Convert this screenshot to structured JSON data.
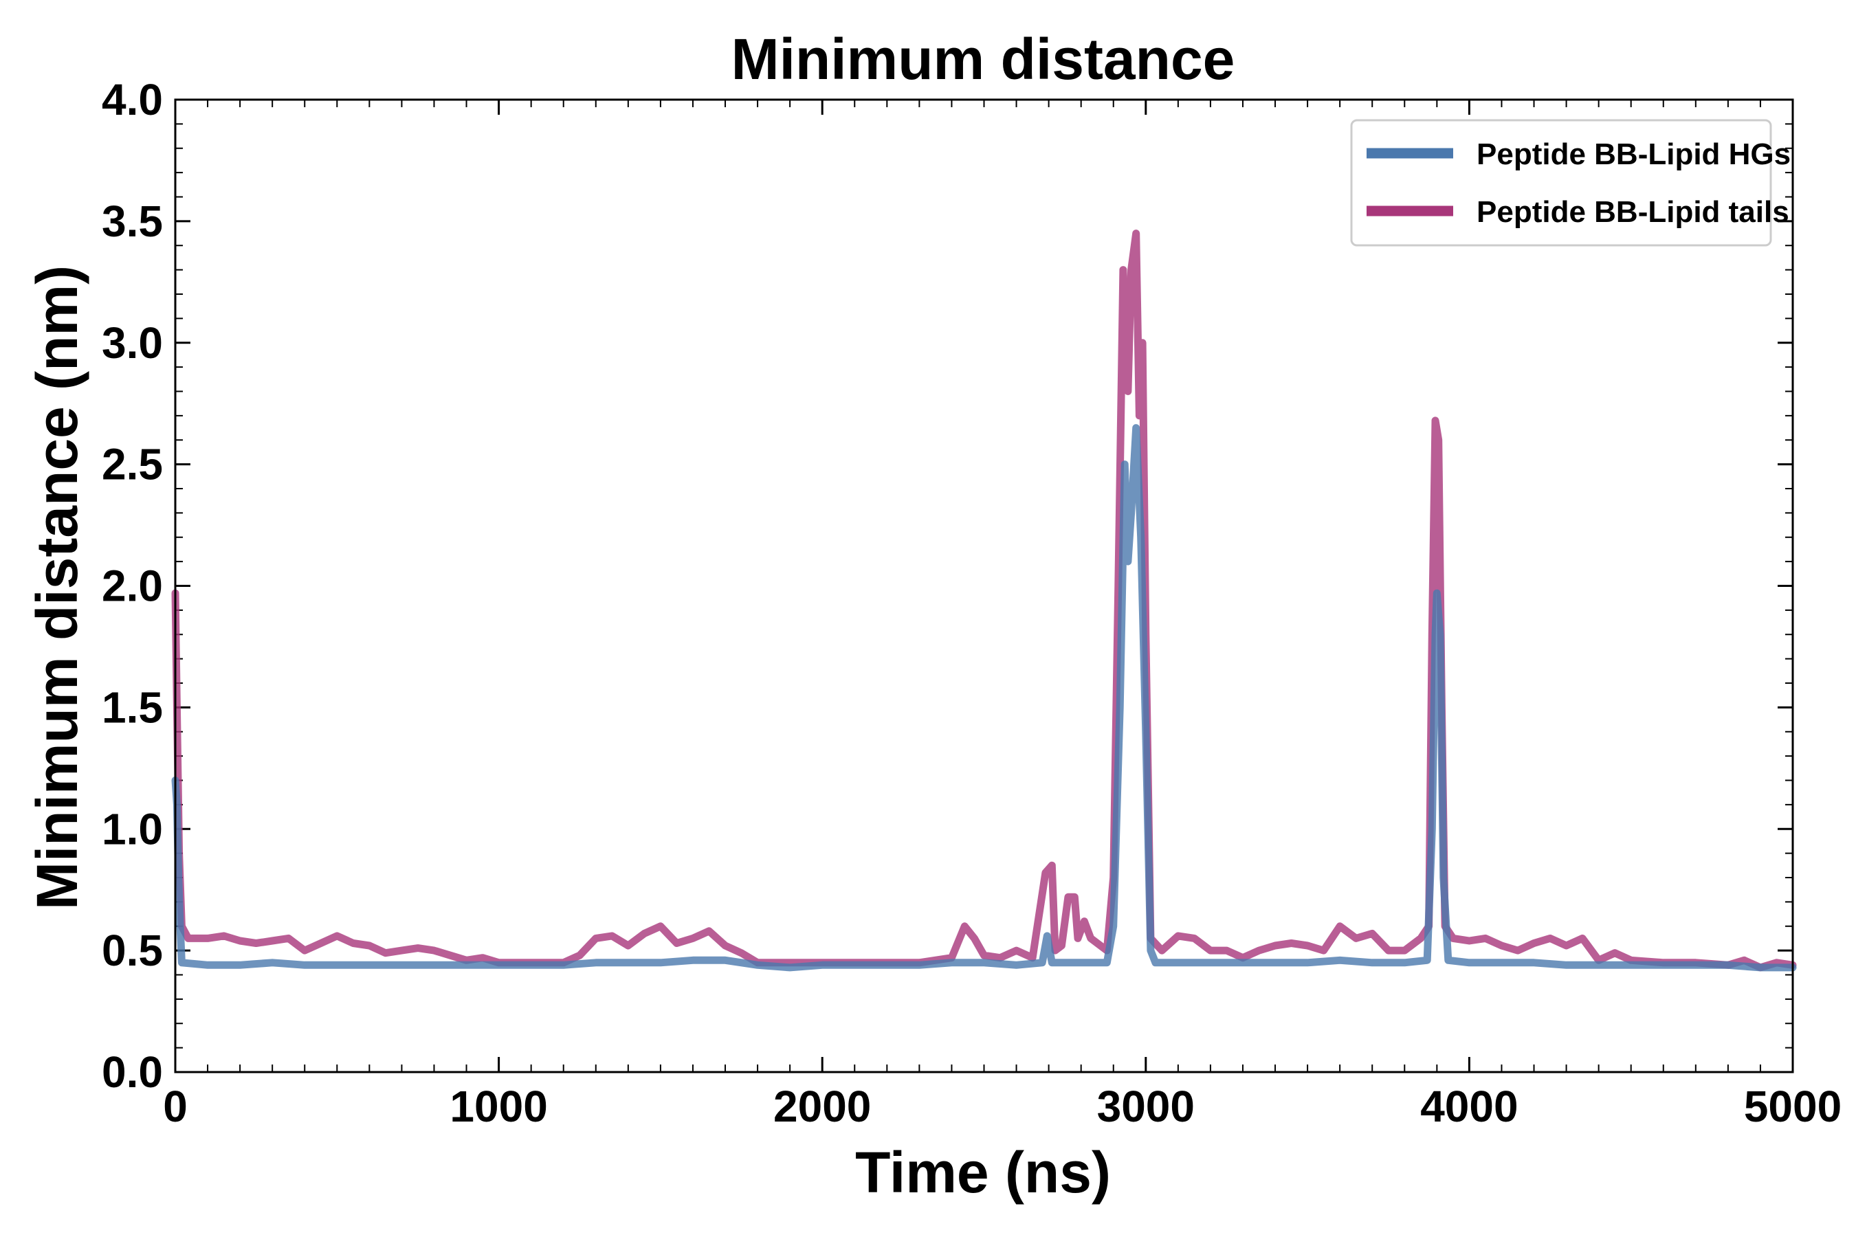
{
  "chart_data": {
    "type": "line",
    "title": "Minimum distance",
    "xlabel": "Time (ns)",
    "ylabel": "Minimum distance (nm)",
    "xlim": [
      0,
      5000
    ],
    "ylim": [
      0,
      4.0
    ],
    "x_ticks": [
      "0",
      "1000",
      "2000",
      "3000",
      "4000",
      "5000"
    ],
    "y_ticks": [
      "0.0",
      "0.5",
      "1.0",
      "1.5",
      "2.0",
      "2.5",
      "3.0",
      "3.5",
      "4.0"
    ],
    "legend_position": "top-right",
    "series": [
      {
        "name": "Peptide BB-Lipid HGs",
        "color": "#4a78ad",
        "points": [
          [
            0,
            1.2
          ],
          [
            5,
            1.1
          ],
          [
            10,
            0.8
          ],
          [
            15,
            0.6
          ],
          [
            20,
            0.45
          ],
          [
            100,
            0.44
          ],
          [
            200,
            0.44
          ],
          [
            300,
            0.45
          ],
          [
            400,
            0.44
          ],
          [
            500,
            0.44
          ],
          [
            600,
            0.44
          ],
          [
            700,
            0.44
          ],
          [
            800,
            0.44
          ],
          [
            900,
            0.44
          ],
          [
            1000,
            0.44
          ],
          [
            1100,
            0.44
          ],
          [
            1200,
            0.44
          ],
          [
            1300,
            0.45
          ],
          [
            1400,
            0.45
          ],
          [
            1500,
            0.45
          ],
          [
            1600,
            0.46
          ],
          [
            1700,
            0.46
          ],
          [
            1800,
            0.44
          ],
          [
            1900,
            0.43
          ],
          [
            2000,
            0.44
          ],
          [
            2100,
            0.44
          ],
          [
            2200,
            0.44
          ],
          [
            2300,
            0.44
          ],
          [
            2400,
            0.45
          ],
          [
            2500,
            0.45
          ],
          [
            2600,
            0.44
          ],
          [
            2680,
            0.45
          ],
          [
            2695,
            0.56
          ],
          [
            2710,
            0.45
          ],
          [
            2800,
            0.45
          ],
          [
            2880,
            0.45
          ],
          [
            2900,
            0.6
          ],
          [
            2920,
            1.5
          ],
          [
            2935,
            2.5
          ],
          [
            2945,
            2.1
          ],
          [
            2955,
            2.3
          ],
          [
            2970,
            2.65
          ],
          [
            2985,
            2.2
          ],
          [
            3000,
            1.4
          ],
          [
            3015,
            0.5
          ],
          [
            3030,
            0.45
          ],
          [
            3100,
            0.45
          ],
          [
            3200,
            0.45
          ],
          [
            3300,
            0.45
          ],
          [
            3400,
            0.45
          ],
          [
            3500,
            0.45
          ],
          [
            3600,
            0.46
          ],
          [
            3700,
            0.45
          ],
          [
            3800,
            0.45
          ],
          [
            3870,
            0.46
          ],
          [
            3885,
            1.0
          ],
          [
            3895,
            1.8
          ],
          [
            3900,
            1.97
          ],
          [
            3910,
            1.8
          ],
          [
            3920,
            0.8
          ],
          [
            3935,
            0.46
          ],
          [
            4000,
            0.45
          ],
          [
            4100,
            0.45
          ],
          [
            4200,
            0.45
          ],
          [
            4300,
            0.44
          ],
          [
            4400,
            0.44
          ],
          [
            4500,
            0.44
          ],
          [
            4600,
            0.44
          ],
          [
            4700,
            0.44
          ],
          [
            4800,
            0.44
          ],
          [
            4900,
            0.43
          ],
          [
            5000,
            0.43
          ]
        ]
      },
      {
        "name": "Peptide BB-Lipid tails",
        "color": "#a8367a",
        "points": [
          [
            0,
            1.97
          ],
          [
            5,
            1.5
          ],
          [
            12,
            0.9
          ],
          [
            20,
            0.6
          ],
          [
            40,
            0.55
          ],
          [
            100,
            0.55
          ],
          [
            150,
            0.56
          ],
          [
            200,
            0.54
          ],
          [
            250,
            0.53
          ],
          [
            300,
            0.54
          ],
          [
            350,
            0.55
          ],
          [
            400,
            0.5
          ],
          [
            450,
            0.53
          ],
          [
            500,
            0.56
          ],
          [
            550,
            0.53
          ],
          [
            600,
            0.52
          ],
          [
            650,
            0.49
          ],
          [
            700,
            0.5
          ],
          [
            750,
            0.51
          ],
          [
            800,
            0.5
          ],
          [
            850,
            0.48
          ],
          [
            900,
            0.46
          ],
          [
            950,
            0.47
          ],
          [
            1000,
            0.45
          ],
          [
            1100,
            0.45
          ],
          [
            1200,
            0.45
          ],
          [
            1250,
            0.48
          ],
          [
            1300,
            0.55
          ],
          [
            1350,
            0.56
          ],
          [
            1400,
            0.52
          ],
          [
            1450,
            0.57
          ],
          [
            1500,
            0.6
          ],
          [
            1550,
            0.53
          ],
          [
            1600,
            0.55
          ],
          [
            1650,
            0.58
          ],
          [
            1700,
            0.52
          ],
          [
            1750,
            0.49
          ],
          [
            1800,
            0.45
          ],
          [
            1900,
            0.45
          ],
          [
            2000,
            0.45
          ],
          [
            2100,
            0.45
          ],
          [
            2200,
            0.45
          ],
          [
            2300,
            0.45
          ],
          [
            2400,
            0.47
          ],
          [
            2440,
            0.6
          ],
          [
            2470,
            0.55
          ],
          [
            2500,
            0.48
          ],
          [
            2550,
            0.47
          ],
          [
            2600,
            0.5
          ],
          [
            2650,
            0.47
          ],
          [
            2690,
            0.82
          ],
          [
            2710,
            0.85
          ],
          [
            2720,
            0.5
          ],
          [
            2740,
            0.52
          ],
          [
            2760,
            0.72
          ],
          [
            2780,
            0.72
          ],
          [
            2790,
            0.55
          ],
          [
            2810,
            0.62
          ],
          [
            2830,
            0.55
          ],
          [
            2880,
            0.5
          ],
          [
            2900,
            0.8
          ],
          [
            2915,
            2.0
          ],
          [
            2930,
            3.3
          ],
          [
            2945,
            2.8
          ],
          [
            2955,
            3.3
          ],
          [
            2970,
            3.45
          ],
          [
            2980,
            2.7
          ],
          [
            2990,
            3.0
          ],
          [
            3000,
            1.8
          ],
          [
            3015,
            0.55
          ],
          [
            3050,
            0.5
          ],
          [
            3100,
            0.56
          ],
          [
            3150,
            0.55
          ],
          [
            3200,
            0.5
          ],
          [
            3250,
            0.5
          ],
          [
            3300,
            0.47
          ],
          [
            3350,
            0.5
          ],
          [
            3400,
            0.52
          ],
          [
            3450,
            0.53
          ],
          [
            3500,
            0.52
          ],
          [
            3550,
            0.5
          ],
          [
            3600,
            0.6
          ],
          [
            3650,
            0.55
          ],
          [
            3700,
            0.57
          ],
          [
            3750,
            0.5
          ],
          [
            3800,
            0.5
          ],
          [
            3850,
            0.55
          ],
          [
            3875,
            0.6
          ],
          [
            3885,
            1.8
          ],
          [
            3895,
            2.68
          ],
          [
            3905,
            2.6
          ],
          [
            3915,
            1.5
          ],
          [
            3925,
            0.6
          ],
          [
            3950,
            0.55
          ],
          [
            4000,
            0.54
          ],
          [
            4050,
            0.55
          ],
          [
            4100,
            0.52
          ],
          [
            4150,
            0.5
          ],
          [
            4200,
            0.53
          ],
          [
            4250,
            0.55
          ],
          [
            4300,
            0.52
          ],
          [
            4350,
            0.55
          ],
          [
            4400,
            0.46
          ],
          [
            4450,
            0.49
          ],
          [
            4500,
            0.46
          ],
          [
            4600,
            0.45
          ],
          [
            4700,
            0.45
          ],
          [
            4800,
            0.44
          ],
          [
            4850,
            0.46
          ],
          [
            4900,
            0.43
          ],
          [
            4950,
            0.45
          ],
          [
            5000,
            0.44
          ]
        ]
      }
    ]
  }
}
